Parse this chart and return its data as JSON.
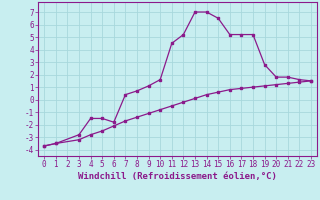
{
  "xlabel": "Windchill (Refroidissement éolien,°C)",
  "bg_color": "#c8eef0",
  "line_color": "#8b1a8b",
  "grid_color": "#a8d8dc",
  "xlim": [
    -0.5,
    23.5
  ],
  "ylim": [
    -4.5,
    7.8
  ],
  "xticks": [
    0,
    1,
    2,
    3,
    4,
    5,
    6,
    7,
    8,
    9,
    10,
    11,
    12,
    13,
    14,
    15,
    16,
    17,
    18,
    19,
    20,
    21,
    22,
    23
  ],
  "yticks": [
    -4,
    -3,
    -2,
    -1,
    0,
    1,
    2,
    3,
    4,
    5,
    6,
    7
  ],
  "curve1_x": [
    0,
    1,
    3,
    4,
    5,
    6,
    7,
    8,
    9,
    10,
    11,
    12,
    13,
    14,
    15,
    16,
    17,
    18,
    19,
    20,
    21,
    22,
    23
  ],
  "curve1_y": [
    -3.7,
    -3.5,
    -2.8,
    -1.5,
    -1.5,
    -1.8,
    0.4,
    0.7,
    1.1,
    1.6,
    4.5,
    5.2,
    7.0,
    7.0,
    6.5,
    5.2,
    5.2,
    5.2,
    2.8,
    1.8,
    1.8,
    1.6,
    1.5
  ],
  "curve2_x": [
    0,
    1,
    3,
    4,
    5,
    6,
    7,
    8,
    9,
    10,
    11,
    12,
    13,
    14,
    15,
    16,
    17,
    18,
    19,
    20,
    21,
    22,
    23
  ],
  "curve2_y": [
    -3.7,
    -3.5,
    -3.2,
    -2.8,
    -2.5,
    -2.1,
    -1.7,
    -1.4,
    -1.1,
    -0.8,
    -0.5,
    -0.2,
    0.1,
    0.4,
    0.6,
    0.8,
    0.9,
    1.0,
    1.1,
    1.2,
    1.3,
    1.4,
    1.5
  ],
  "font_family": "monospace",
  "tick_fontsize": 5.5,
  "label_fontsize": 6.5
}
